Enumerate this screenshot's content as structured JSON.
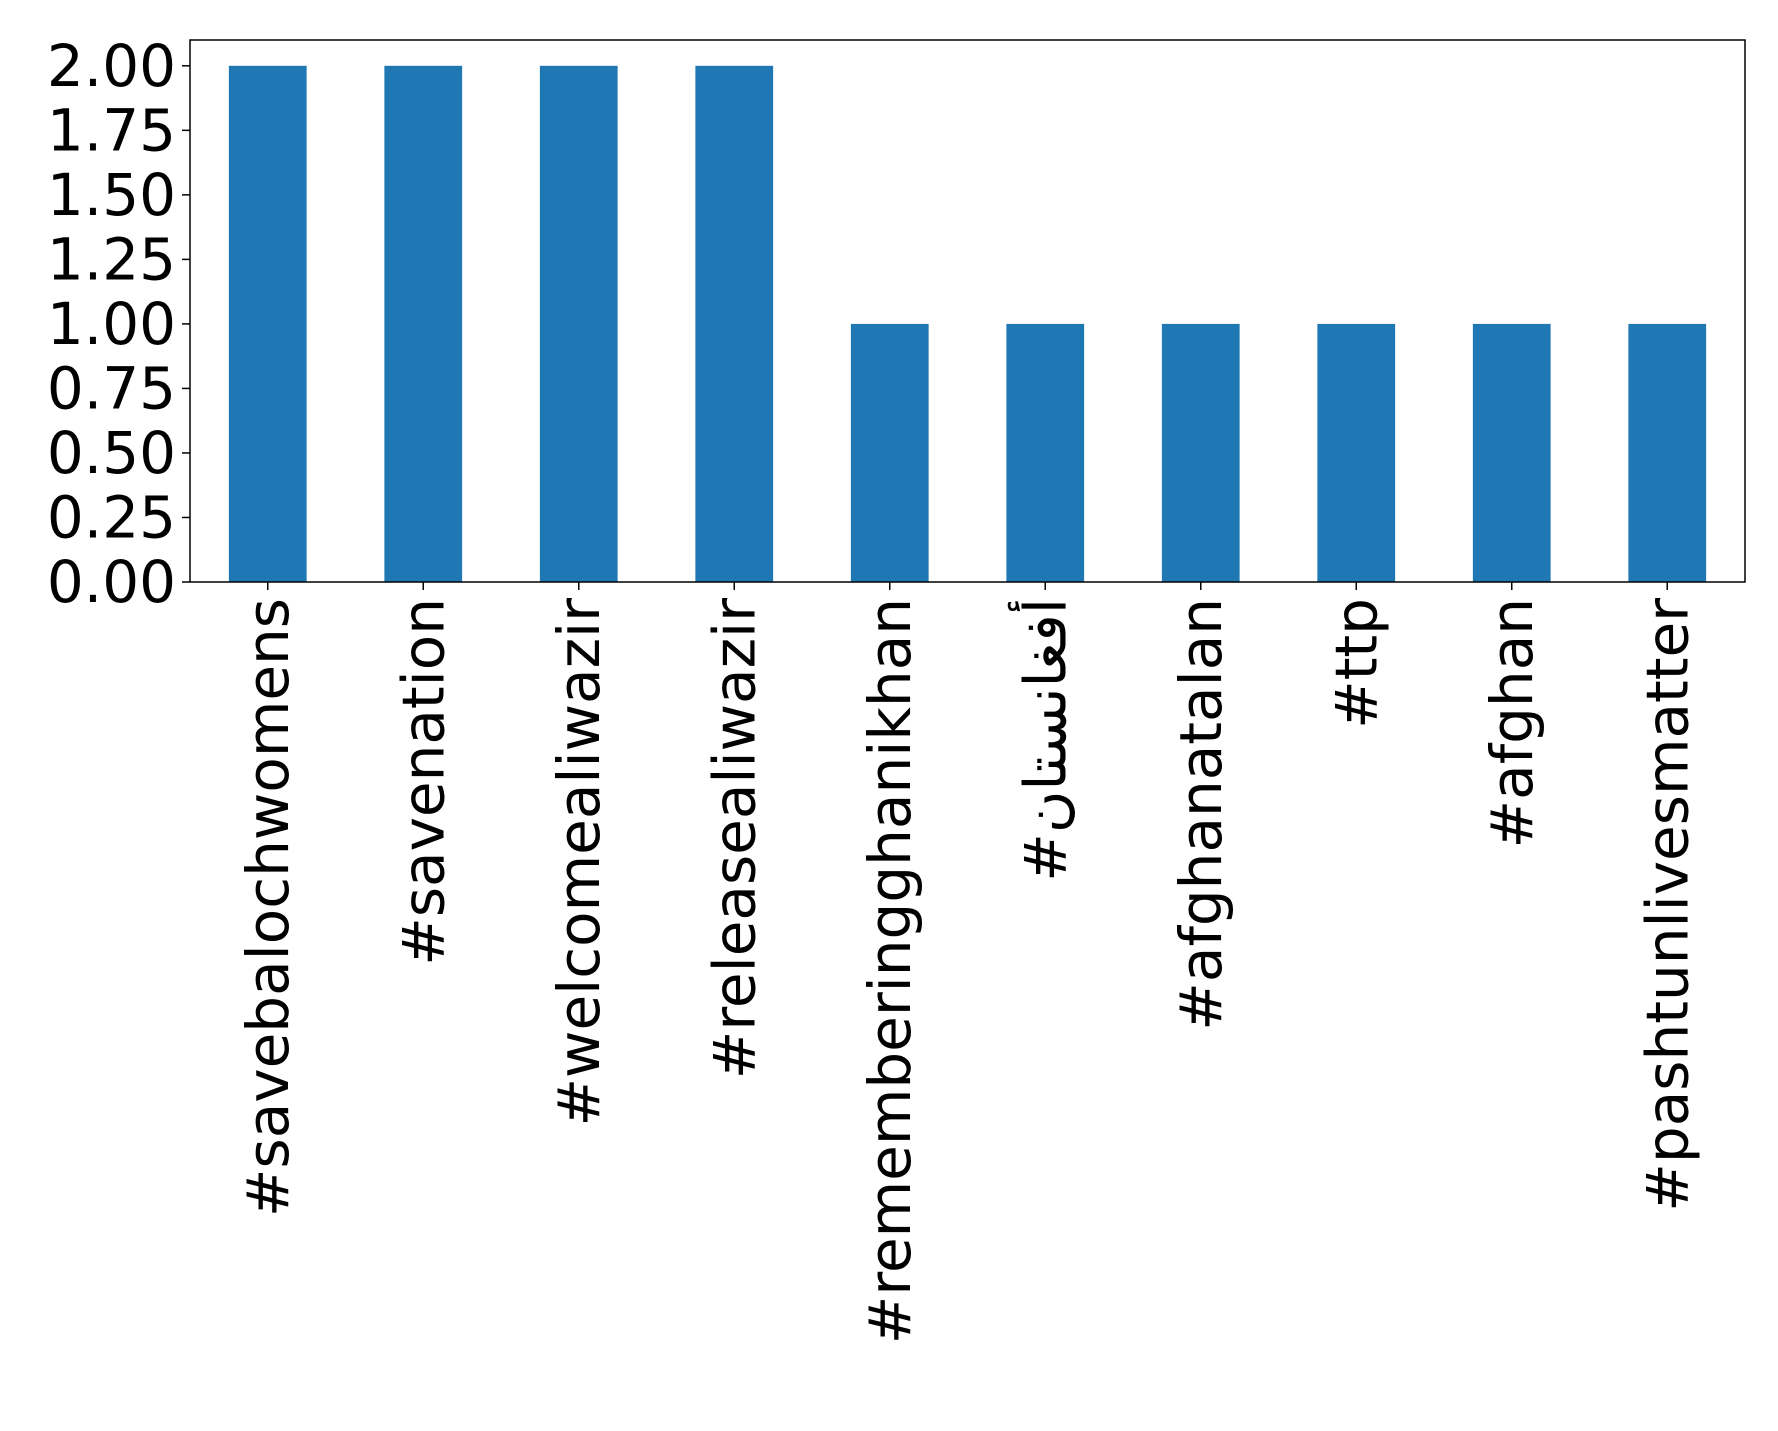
{
  "chart_data": {
    "type": "bar",
    "categories": [
      "#savebalochwomens",
      "#savenation",
      "#welcomealiwazir",
      "#releasealiwazir",
      "#rememberingghanikhan",
      "#أفغانستان",
      "#afghanatalan",
      "#ttp",
      "#afghan",
      "#pashtunlivesmatter"
    ],
    "values": [
      2,
      2,
      2,
      2,
      1,
      1,
      1,
      1,
      1,
      1
    ],
    "yticks": [
      "0.00",
      "0.25",
      "0.50",
      "0.75",
      "1.00",
      "1.25",
      "1.50",
      "1.75",
      "2.00"
    ],
    "ylim": [
      0,
      2.1
    ],
    "bar_color": "#1f77b4",
    "grid": false,
    "legend": "none"
  }
}
